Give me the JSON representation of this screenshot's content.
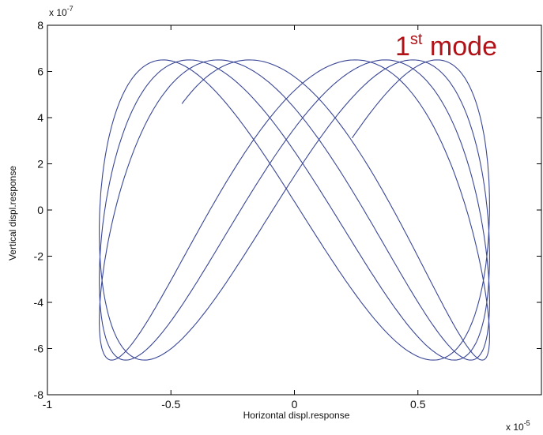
{
  "chart_data": {
    "type": "line",
    "xlabel": "Horizontal displ.response",
    "ylabel": "Vertical displ.response",
    "x_multiplier": "x 10",
    "x_exponent": "-5",
    "y_multiplier": "x 10",
    "y_exponent": "-7",
    "xlim": [
      -1,
      1
    ],
    "ylim": [
      -8,
      8
    ],
    "x_ticks": [
      -1,
      -0.5,
      0,
      0.5,
      1
    ],
    "x_tick_labels": [
      "-1",
      "-0.5",
      "0",
      "0.5",
      "1"
    ],
    "y_ticks": [
      -8,
      -6,
      -4,
      -2,
      0,
      2,
      4,
      6,
      8
    ],
    "y_tick_labels": [
      "-8",
      "-6",
      "-4",
      "-2",
      "0",
      "2",
      "4",
      "6",
      "8"
    ],
    "grid": false,
    "line_color": "#3a4796",
    "annotation": {
      "text": "1",
      "sup": "st",
      "suffix": " mode",
      "color": "#b01217"
    },
    "trajectory": {
      "ax": 0.79,
      "fx": 1,
      "px": 0.3,
      "ay": 6.5,
      "fy": 2,
      "py": 0.5,
      "cycles": 3.55,
      "phase_drift": 0.055,
      "end_point": [
        0.07,
        -0.2
      ]
    }
  }
}
